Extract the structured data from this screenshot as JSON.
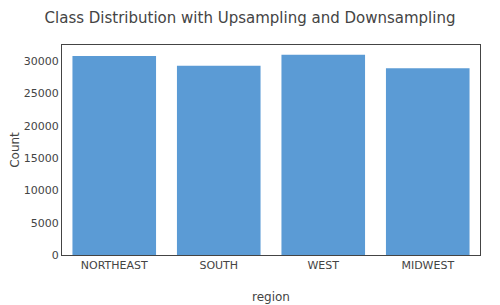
{
  "chart_data": {
    "type": "bar",
    "title": "Class Distribution with Upsampling and Downsampling",
    "xlabel": "region",
    "ylabel": "Count",
    "categories": [
      "NORTHEAST",
      "SOUTH",
      "WEST",
      "MIDWEST"
    ],
    "values": [
      30800,
      29300,
      31000,
      28900
    ],
    "color": "#5b9bd5",
    "ylim": [
      0,
      32500
    ],
    "yticks": [
      0,
      5000,
      10000,
      15000,
      20000,
      25000,
      30000
    ],
    "grid": false
  }
}
